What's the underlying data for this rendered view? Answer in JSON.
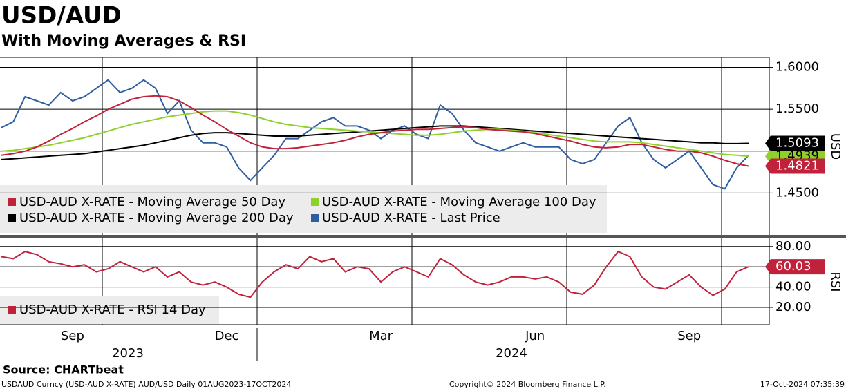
{
  "title": "USD/AUD",
  "subtitle": "With Moving Averages & RSI",
  "source": "Source: CHARTbeat",
  "footer": {
    "left": "USDAUD Curncy (USD-AUD X-RATE) AUD/USD  Daily 01AUG2023-17OCT2024",
    "center": "Copyright© 2024 Bloomberg Finance L.P.",
    "right": "17-Oct-2024 07:35:39"
  },
  "chart_data": [
    {
      "type": "line",
      "y_label": "USD",
      "ylim": [
        1.4,
        1.612
      ],
      "yticks": [
        {
          "value": 1.45,
          "label": "1.4500"
        },
        {
          "value": 1.5,
          "label": "1.5000"
        },
        {
          "value": 1.55,
          "label": "1.5500"
        },
        {
          "value": 1.6,
          "label": "1.6000"
        }
      ],
      "grid": true,
      "series": [
        {
          "name": "USD-AUD X-RATE - Moving Average 50 Day",
          "color": "#c0223b",
          "last_tag": true,
          "values": [
            1.495,
            1.497,
            1.5,
            1.505,
            1.512,
            1.52,
            1.527,
            1.535,
            1.542,
            1.55,
            1.556,
            1.562,
            1.565,
            1.566,
            1.565,
            1.56,
            1.552,
            1.543,
            1.535,
            1.526,
            1.518,
            1.51,
            1.505,
            1.503,
            1.503,
            1.504,
            1.506,
            1.508,
            1.51,
            1.513,
            1.517,
            1.52,
            1.522,
            1.524,
            1.525,
            1.526,
            1.526,
            1.527,
            1.528,
            1.529,
            1.528,
            1.526,
            1.525,
            1.524,
            1.523,
            1.521,
            1.518,
            1.515,
            1.512,
            1.508,
            1.505,
            1.504,
            1.505,
            1.508,
            1.508,
            1.505,
            1.502,
            1.5,
            1.5,
            1.498,
            1.494,
            1.489,
            1.485,
            1.4821
          ]
        },
        {
          "name": "USD-AUD X-RATE - Moving Average 100 Day",
          "color": "#8fd12b",
          "last_tag": true,
          "values": [
            1.5,
            1.501,
            1.503,
            1.505,
            1.507,
            1.51,
            1.513,
            1.516,
            1.52,
            1.524,
            1.528,
            1.532,
            1.535,
            1.538,
            1.541,
            1.543,
            1.545,
            1.547,
            1.548,
            1.548,
            1.546,
            1.543,
            1.539,
            1.535,
            1.532,
            1.53,
            1.528,
            1.527,
            1.526,
            1.525,
            1.524,
            1.523,
            1.522,
            1.521,
            1.52,
            1.519,
            1.519,
            1.52,
            1.522,
            1.524,
            1.525,
            1.526,
            1.526,
            1.525,
            1.524,
            1.522,
            1.52,
            1.518,
            1.516,
            1.514,
            1.512,
            1.511,
            1.511,
            1.511,
            1.51,
            1.508,
            1.506,
            1.504,
            1.502,
            1.5,
            1.498,
            1.496,
            1.495,
            1.4939
          ]
        },
        {
          "name": "USD-AUD X-RATE - Moving Average 200 Day",
          "color": "#000000",
          "last_tag": true,
          "values": [
            1.49,
            1.491,
            1.492,
            1.493,
            1.494,
            1.495,
            1.496,
            1.497,
            1.499,
            1.501,
            1.503,
            1.505,
            1.507,
            1.51,
            1.513,
            1.516,
            1.519,
            1.521,
            1.522,
            1.522,
            1.521,
            1.52,
            1.519,
            1.518,
            1.518,
            1.518,
            1.519,
            1.52,
            1.521,
            1.522,
            1.523,
            1.524,
            1.525,
            1.526,
            1.527,
            1.528,
            1.529,
            1.53,
            1.53,
            1.53,
            1.529,
            1.528,
            1.527,
            1.526,
            1.525,
            1.524,
            1.523,
            1.522,
            1.521,
            1.52,
            1.519,
            1.518,
            1.517,
            1.516,
            1.515,
            1.514,
            1.513,
            1.512,
            1.511,
            1.51,
            1.51,
            1.509,
            1.509,
            1.5093
          ]
        },
        {
          "name": "USD-AUD X-RATE - Last Price",
          "color": "#2e5e9e",
          "last_tag": false,
          "values": [
            1.528,
            1.535,
            1.565,
            1.56,
            1.555,
            1.57,
            1.56,
            1.565,
            1.575,
            1.585,
            1.57,
            1.575,
            1.585,
            1.575,
            1.545,
            1.56,
            1.525,
            1.51,
            1.51,
            1.505,
            1.48,
            1.465,
            1.48,
            1.495,
            1.515,
            1.515,
            1.525,
            1.535,
            1.54,
            1.53,
            1.53,
            1.525,
            1.515,
            1.525,
            1.53,
            1.52,
            1.515,
            1.555,
            1.545,
            1.525,
            1.51,
            1.505,
            1.5,
            1.505,
            1.51,
            1.505,
            1.505,
            1.505,
            1.49,
            1.485,
            1.49,
            1.51,
            1.53,
            1.54,
            1.51,
            1.49,
            1.48,
            1.49,
            1.5,
            1.48,
            1.46,
            1.455,
            1.48,
            1.495
          ]
        }
      ]
    },
    {
      "type": "line",
      "y_label": "RSI",
      "ylim": [
        3,
        88
      ],
      "yticks": [
        {
          "value": 20,
          "label": "20.00"
        },
        {
          "value": 40,
          "label": "40.00"
        },
        {
          "value": 60,
          "label": "60.00"
        },
        {
          "value": 80,
          "label": "80.00"
        }
      ],
      "grid": true,
      "categories": [
        null,
        null,
        null,
        null,
        null,
        null,
        "Sep",
        null,
        null,
        null,
        null,
        null,
        null,
        null,
        null,
        null,
        null,
        null,
        null,
        "Dec",
        null,
        null,
        null,
        null,
        null,
        null,
        null,
        null,
        null,
        null,
        null,
        null,
        "Mar",
        null,
        null,
        null,
        null,
        null,
        null,
        null,
        null,
        null,
        null,
        null,
        null,
        "Jun",
        null,
        null,
        null,
        null,
        null,
        null,
        null,
        null,
        null,
        null,
        null,
        null,
        "Sep",
        null,
        null,
        null,
        null,
        null
      ],
      "year_labels": [
        "2023",
        "2024"
      ],
      "series": [
        {
          "name": "USD-AUD X-RATE - RSI 14 Day",
          "color": "#c0223b",
          "last_tag": true,
          "values": [
            70,
            68,
            75,
            72,
            65,
            63,
            60,
            62,
            55,
            58,
            65,
            60,
            55,
            60,
            50,
            55,
            45,
            42,
            45,
            40,
            33,
            30,
            45,
            55,
            62,
            58,
            70,
            65,
            68,
            55,
            60,
            58,
            45,
            55,
            60,
            55,
            50,
            68,
            62,
            52,
            45,
            42,
            45,
            50,
            50,
            48,
            50,
            45,
            35,
            33,
            42,
            60,
            75,
            70,
            50,
            40,
            38,
            45,
            52,
            40,
            32,
            38,
            55,
            60.03
          ]
        }
      ]
    }
  ]
}
